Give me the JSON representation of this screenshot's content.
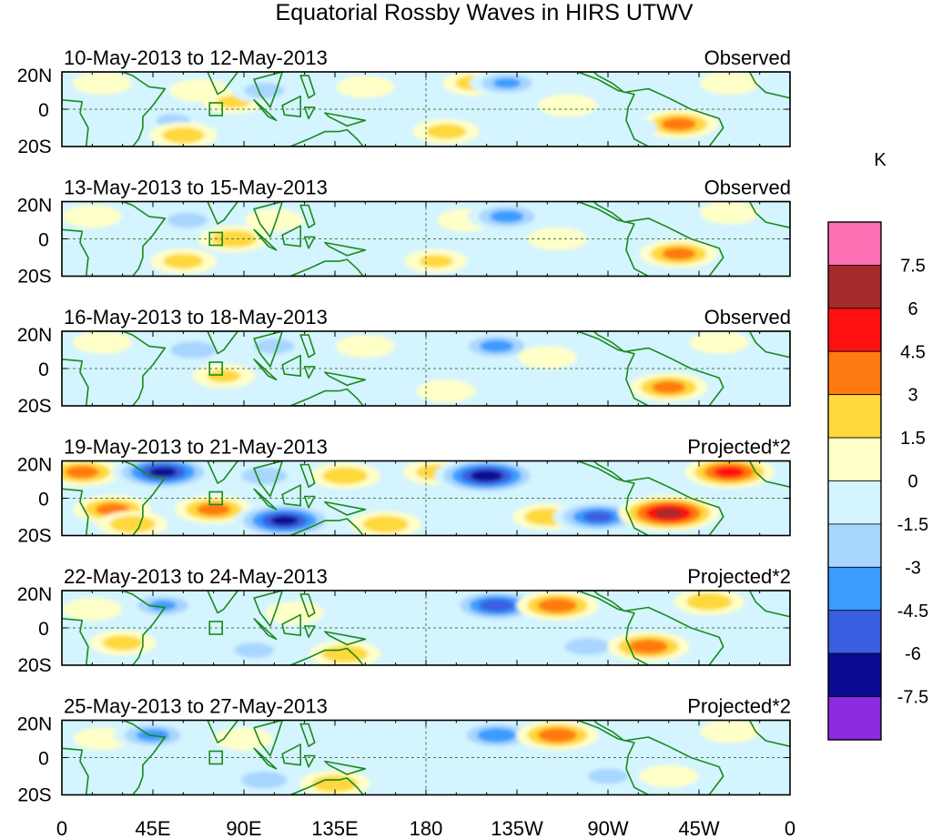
{
  "title": "Equatorial Rossby Waves in HIRS UTWV",
  "colorbar": {
    "unit": "K",
    "labels": [
      "7.5",
      "6",
      "4.5",
      "3",
      "1.5",
      "0",
      "-1.5",
      "-3",
      "-4.5",
      "-6",
      "-7.5"
    ],
    "colors": [
      "#ff6fb4",
      "#a52a2a",
      "#ff1010",
      "#ff7a10",
      "#ffd83a",
      "#ffffc8",
      "#d4f4ff",
      "#a8d6ff",
      "#3a9cff",
      "#3a5fe0",
      "#0a0a90",
      "#8a2be2"
    ]
  },
  "axes": {
    "lat_labels": [
      "20N",
      "0",
      "20S"
    ],
    "lon_labels": [
      "0",
      "45E",
      "90E",
      "135E",
      "180",
      "135W",
      "90W",
      "45W",
      "0"
    ]
  },
  "chart_data": {
    "type": "heatmap",
    "title": "Equatorial Rossby Waves in HIRS UTWV",
    "unit": "K",
    "contour_levels": [
      -7.5,
      -6,
      -4.5,
      -3,
      -1.5,
      0,
      1.5,
      3,
      4.5,
      6,
      7.5
    ],
    "lon_range": [
      0,
      360
    ],
    "lat_range": [
      -20,
      20
    ],
    "panels": [
      {
        "date": "10-May-2013 to 12-May-2013",
        "label": "Observed",
        "features": [
          {
            "lon": 20,
            "lat": 14,
            "value": 2.0
          },
          {
            "lon": 55,
            "lat": -6,
            "value": -2.5
          },
          {
            "lon": 68,
            "lat": 10,
            "value": 2.2
          },
          {
            "lon": 85,
            "lat": 4,
            "value": 2.5
          },
          {
            "lon": 60,
            "lat": -14,
            "value": 3.2
          },
          {
            "lon": 100,
            "lat": 10,
            "value": -3.0
          },
          {
            "lon": 135,
            "lat": -8,
            "value": -2.0
          },
          {
            "lon": 150,
            "lat": 12,
            "value": 1.8
          },
          {
            "lon": 205,
            "lat": 14,
            "value": 3.2
          },
          {
            "lon": 220,
            "lat": 14,
            "value": -4.0
          },
          {
            "lon": 250,
            "lat": 2,
            "value": 2.0
          },
          {
            "lon": 190,
            "lat": -12,
            "value": 3.0
          },
          {
            "lon": 305,
            "lat": -8,
            "value": 4.6
          },
          {
            "lon": 330,
            "lat": 14,
            "value": 2.0
          },
          {
            "lon": 280,
            "lat": -10,
            "value": -2.0
          }
        ]
      },
      {
        "date": "13-May-2013 to 15-May-2013",
        "label": "Observed",
        "features": [
          {
            "lon": 15,
            "lat": 12,
            "value": 2.0
          },
          {
            "lon": 60,
            "lat": -12,
            "value": 3.0
          },
          {
            "lon": 62,
            "lat": 10,
            "value": -3.0
          },
          {
            "lon": 85,
            "lat": 0,
            "value": 3.5
          },
          {
            "lon": 105,
            "lat": 10,
            "value": 2.0
          },
          {
            "lon": 130,
            "lat": -10,
            "value": -2.0
          },
          {
            "lon": 200,
            "lat": 10,
            "value": 2.0
          },
          {
            "lon": 220,
            "lat": 12,
            "value": -4.5
          },
          {
            "lon": 245,
            "lat": 0,
            "value": 2.0
          },
          {
            "lon": 185,
            "lat": -12,
            "value": 2.5
          },
          {
            "lon": 305,
            "lat": -8,
            "value": 4.5
          },
          {
            "lon": 330,
            "lat": 14,
            "value": 2.0
          }
        ]
      },
      {
        "date": "16-May-2013 to 18-May-2013",
        "label": "Observed",
        "features": [
          {
            "lon": 20,
            "lat": 14,
            "value": 2.0
          },
          {
            "lon": 65,
            "lat": 10,
            "value": -3.5
          },
          {
            "lon": 80,
            "lat": -4,
            "value": 2.5
          },
          {
            "lon": 105,
            "lat": 12,
            "value": -3.0
          },
          {
            "lon": 150,
            "lat": 12,
            "value": 2.0
          },
          {
            "lon": 215,
            "lat": 12,
            "value": -4.5
          },
          {
            "lon": 240,
            "lat": 6,
            "value": 2.0
          },
          {
            "lon": 190,
            "lat": -12,
            "value": 2.0
          },
          {
            "lon": 300,
            "lat": -10,
            "value": 4.5
          },
          {
            "lon": 325,
            "lat": 14,
            "value": 2.0
          },
          {
            "lon": 275,
            "lat": 4,
            "value": -2.0
          }
        ]
      },
      {
        "date": "19-May-2013 to 21-May-2013",
        "label": "Projected*2",
        "features": [
          {
            "lon": 10,
            "lat": 14,
            "value": 4.5
          },
          {
            "lon": 25,
            "lat": -6,
            "value": 4.5
          },
          {
            "lon": 50,
            "lat": 14,
            "value": -7.5
          },
          {
            "lon": 35,
            "lat": -14,
            "value": 3.5
          },
          {
            "lon": 75,
            "lat": -6,
            "value": 4.5
          },
          {
            "lon": 100,
            "lat": 12,
            "value": -3.5
          },
          {
            "lon": 110,
            "lat": -12,
            "value": -7.5
          },
          {
            "lon": 140,
            "lat": 12,
            "value": 3.5
          },
          {
            "lon": 160,
            "lat": -14,
            "value": 3.5
          },
          {
            "lon": 185,
            "lat": 14,
            "value": 3.0
          },
          {
            "lon": 210,
            "lat": 12,
            "value": -8.0
          },
          {
            "lon": 240,
            "lat": -10,
            "value": 3.5
          },
          {
            "lon": 265,
            "lat": -10,
            "value": -6.0
          },
          {
            "lon": 300,
            "lat": -8,
            "value": 7.5
          },
          {
            "lon": 330,
            "lat": 14,
            "value": 6.0
          }
        ]
      },
      {
        "date": "22-May-2013 to 24-May-2013",
        "label": "Projected*2",
        "features": [
          {
            "lon": 15,
            "lat": 10,
            "value": 2.0
          },
          {
            "lon": 30,
            "lat": -8,
            "value": 3.0
          },
          {
            "lon": 50,
            "lat": 12,
            "value": -4.0
          },
          {
            "lon": 95,
            "lat": -12,
            "value": -3.0
          },
          {
            "lon": 115,
            "lat": 8,
            "value": 2.0
          },
          {
            "lon": 140,
            "lat": -14,
            "value": 3.5
          },
          {
            "lon": 215,
            "lat": 12,
            "value": -6.5
          },
          {
            "lon": 245,
            "lat": 12,
            "value": 5.0
          },
          {
            "lon": 260,
            "lat": -10,
            "value": -3.5
          },
          {
            "lon": 290,
            "lat": -10,
            "value": 5.0
          },
          {
            "lon": 320,
            "lat": 14,
            "value": 3.5
          }
        ]
      },
      {
        "date": "25-May-2013 to 27-May-2013",
        "label": "Projected*2",
        "features": [
          {
            "lon": 20,
            "lat": 10,
            "value": 1.8
          },
          {
            "lon": 45,
            "lat": 12,
            "value": -4.5
          },
          {
            "lon": 90,
            "lat": 10,
            "value": 2.0
          },
          {
            "lon": 100,
            "lat": -12,
            "value": -3.5
          },
          {
            "lon": 135,
            "lat": -14,
            "value": 3.5
          },
          {
            "lon": 215,
            "lat": 12,
            "value": -5.0
          },
          {
            "lon": 245,
            "lat": 12,
            "value": 5.0
          },
          {
            "lon": 270,
            "lat": -10,
            "value": -3.0
          },
          {
            "lon": 300,
            "lat": -10,
            "value": 2.0
          },
          {
            "lon": 330,
            "lat": 14,
            "value": 2.0
          }
        ]
      }
    ]
  }
}
